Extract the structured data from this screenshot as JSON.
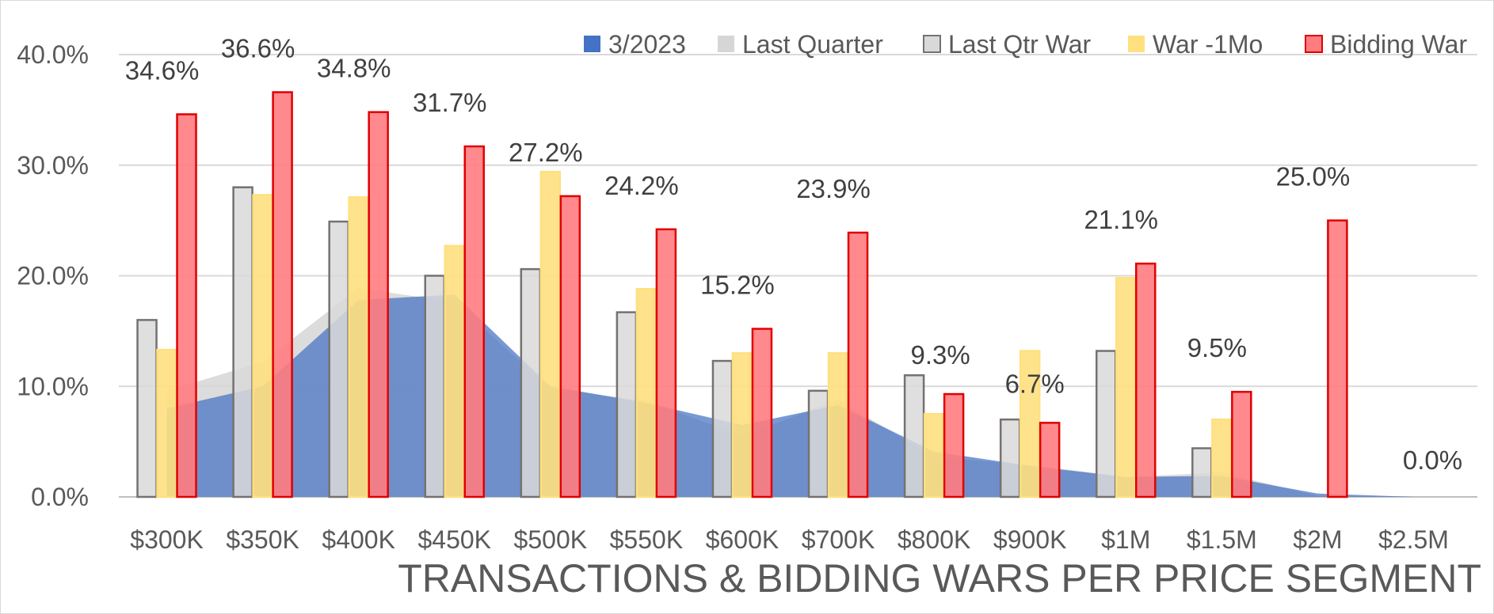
{
  "chart_data": {
    "type": "bar",
    "title": "TRANSACTIONS & BIDDING WARS PER PRICE SEGMENT",
    "xlabel": "",
    "ylabel": "",
    "ylim": [
      0,
      40
    ],
    "y_ticks": [
      "0.0%",
      "10.0%",
      "20.0%",
      "30.0%",
      "40.0%"
    ],
    "grid": true,
    "legend_position": "top-right",
    "categories": [
      "$300K",
      "$350K",
      "$400K",
      "$450K",
      "$500K",
      "$550K",
      "$600K",
      "$700K",
      "$800K",
      "$900K",
      "$1M",
      "$1.5M",
      "$2M",
      "$2.5M"
    ],
    "area_series": [
      {
        "name": "Last Quarter",
        "type": "area",
        "color": "#d6d6d6",
        "values": [
          9.6,
          12.2,
          18.9,
          17.6,
          9.8,
          8.7,
          5.5,
          8.8,
          3.6,
          2.9,
          1.8,
          2.2,
          0.1,
          0.0
        ]
      },
      {
        "name": "3/2023",
        "type": "area",
        "color": "#4472c4",
        "values": [
          8.0,
          10.0,
          17.8,
          18.3,
          10.0,
          8.5,
          6.5,
          8.3,
          4.1,
          2.8,
          1.8,
          1.9,
          0.3,
          0.0
        ]
      }
    ],
    "bar_series": [
      {
        "name": "Last Qtr War",
        "color": "#d9d9d9",
        "stroke": "#767171",
        "values": [
          16.0,
          28.0,
          24.9,
          20.0,
          20.6,
          16.7,
          12.3,
          9.6,
          11.0,
          7.0,
          13.2,
          4.4,
          null,
          null
        ]
      },
      {
        "name": "War -1Mo",
        "color": "#ffe07f",
        "stroke": "#ffe07f",
        "values": [
          13.3,
          27.3,
          27.1,
          22.7,
          29.4,
          18.8,
          13.0,
          13.0,
          7.5,
          13.2,
          19.8,
          7.0,
          null,
          null
        ]
      },
      {
        "name": "Bidding War",
        "color": "#ff7c80",
        "stroke": "#e00000",
        "values": [
          34.6,
          36.6,
          34.8,
          31.7,
          27.2,
          24.2,
          15.2,
          23.9,
          9.3,
          6.7,
          21.1,
          9.5,
          25.0,
          0.0
        ]
      }
    ],
    "data_labels": [
      "34.6%",
      "36.6%",
      "34.8%",
      "31.7%",
      "27.2%",
      "24.2%",
      "15.2%",
      "23.9%",
      "9.3%",
      "6.7%",
      "21.1%",
      "9.5%",
      "25.0%",
      "0.0%"
    ],
    "legend": [
      {
        "name": "3/2023",
        "color": "#4472c4"
      },
      {
        "name": "Last Quarter",
        "color": "#d6d6d6"
      },
      {
        "name": "Last Qtr War",
        "color": "#d9d9d9"
      },
      {
        "name": "War -1Mo",
        "color": "#ffe07f"
      },
      {
        "name": "Bidding War",
        "color": "#ff7c80"
      }
    ]
  }
}
